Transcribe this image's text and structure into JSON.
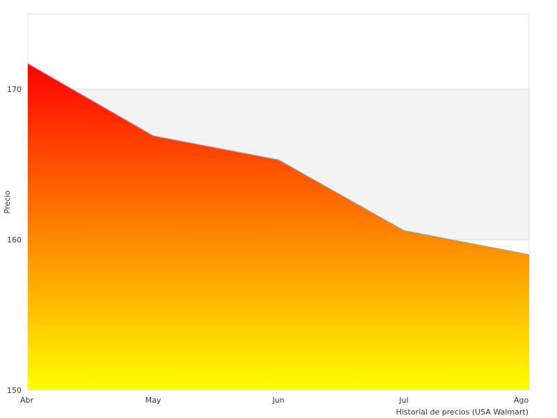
{
  "chart_data": {
    "type": "area",
    "categories": [
      "Abr",
      "May",
      "Jun",
      "Jul",
      "Ago"
    ],
    "values": [
      171.7,
      166.9,
      165.3,
      160.6,
      159.0
    ],
    "ylabel": "Precio",
    "xlabel": "Historial de precios (USA Walmart)",
    "ylim": [
      150,
      175
    ],
    "yticks": [
      "150",
      "160",
      "170"
    ],
    "grid": "alternating horizontal bands",
    "fill_gradient": {
      "top": "#ff0000",
      "bottom": "#ffff00"
    },
    "line_color": "#6fa8dc",
    "band_color": "#f3f3f3",
    "frame_color": "#dddddd"
  }
}
